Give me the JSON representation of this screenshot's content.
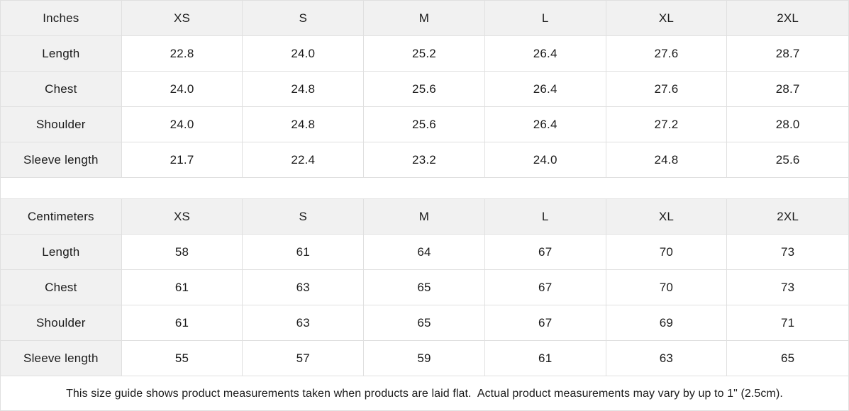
{
  "chart_data": [
    {
      "type": "table",
      "unit_label": "Inches",
      "size_columns": [
        "XS",
        "S",
        "M",
        "L",
        "XL",
        "2XL"
      ],
      "rows": [
        {
          "label": "Length",
          "values": [
            "22.8",
            "24.0",
            "25.2",
            "26.4",
            "27.6",
            "28.7"
          ]
        },
        {
          "label": "Chest",
          "values": [
            "24.0",
            "24.8",
            "25.6",
            "26.4",
            "27.6",
            "28.7"
          ]
        },
        {
          "label": "Shoulder",
          "values": [
            "24.0",
            "24.8",
            "25.6",
            "26.4",
            "27.2",
            "28.0"
          ]
        },
        {
          "label": "Sleeve length",
          "values": [
            "21.7",
            "22.4",
            "23.2",
            "24.0",
            "24.8",
            "25.6"
          ]
        }
      ]
    },
    {
      "type": "table",
      "unit_label": "Centimeters",
      "size_columns": [
        "XS",
        "S",
        "M",
        "L",
        "XL",
        "2XL"
      ],
      "rows": [
        {
          "label": "Length",
          "values": [
            "58",
            "61",
            "64",
            "67",
            "70",
            "73"
          ]
        },
        {
          "label": "Chest",
          "values": [
            "61",
            "63",
            "65",
            "67",
            "70",
            "73"
          ]
        },
        {
          "label": "Shoulder",
          "values": [
            "61",
            "63",
            "65",
            "67",
            "69",
            "71"
          ]
        },
        {
          "label": "Sleeve length",
          "values": [
            "55",
            "57",
            "59",
            "61",
            "63",
            "65"
          ]
        }
      ]
    }
  ],
  "footer": {
    "note": "This size guide shows product measurements taken when products are laid flat.  Actual product measurements may vary by up to 1\" (2.5cm)."
  },
  "colors": {
    "header_bg": "#f1f1f1",
    "cell_bg": "#ffffff",
    "border": "#e0e0e0",
    "text": "#1b1b1b"
  }
}
